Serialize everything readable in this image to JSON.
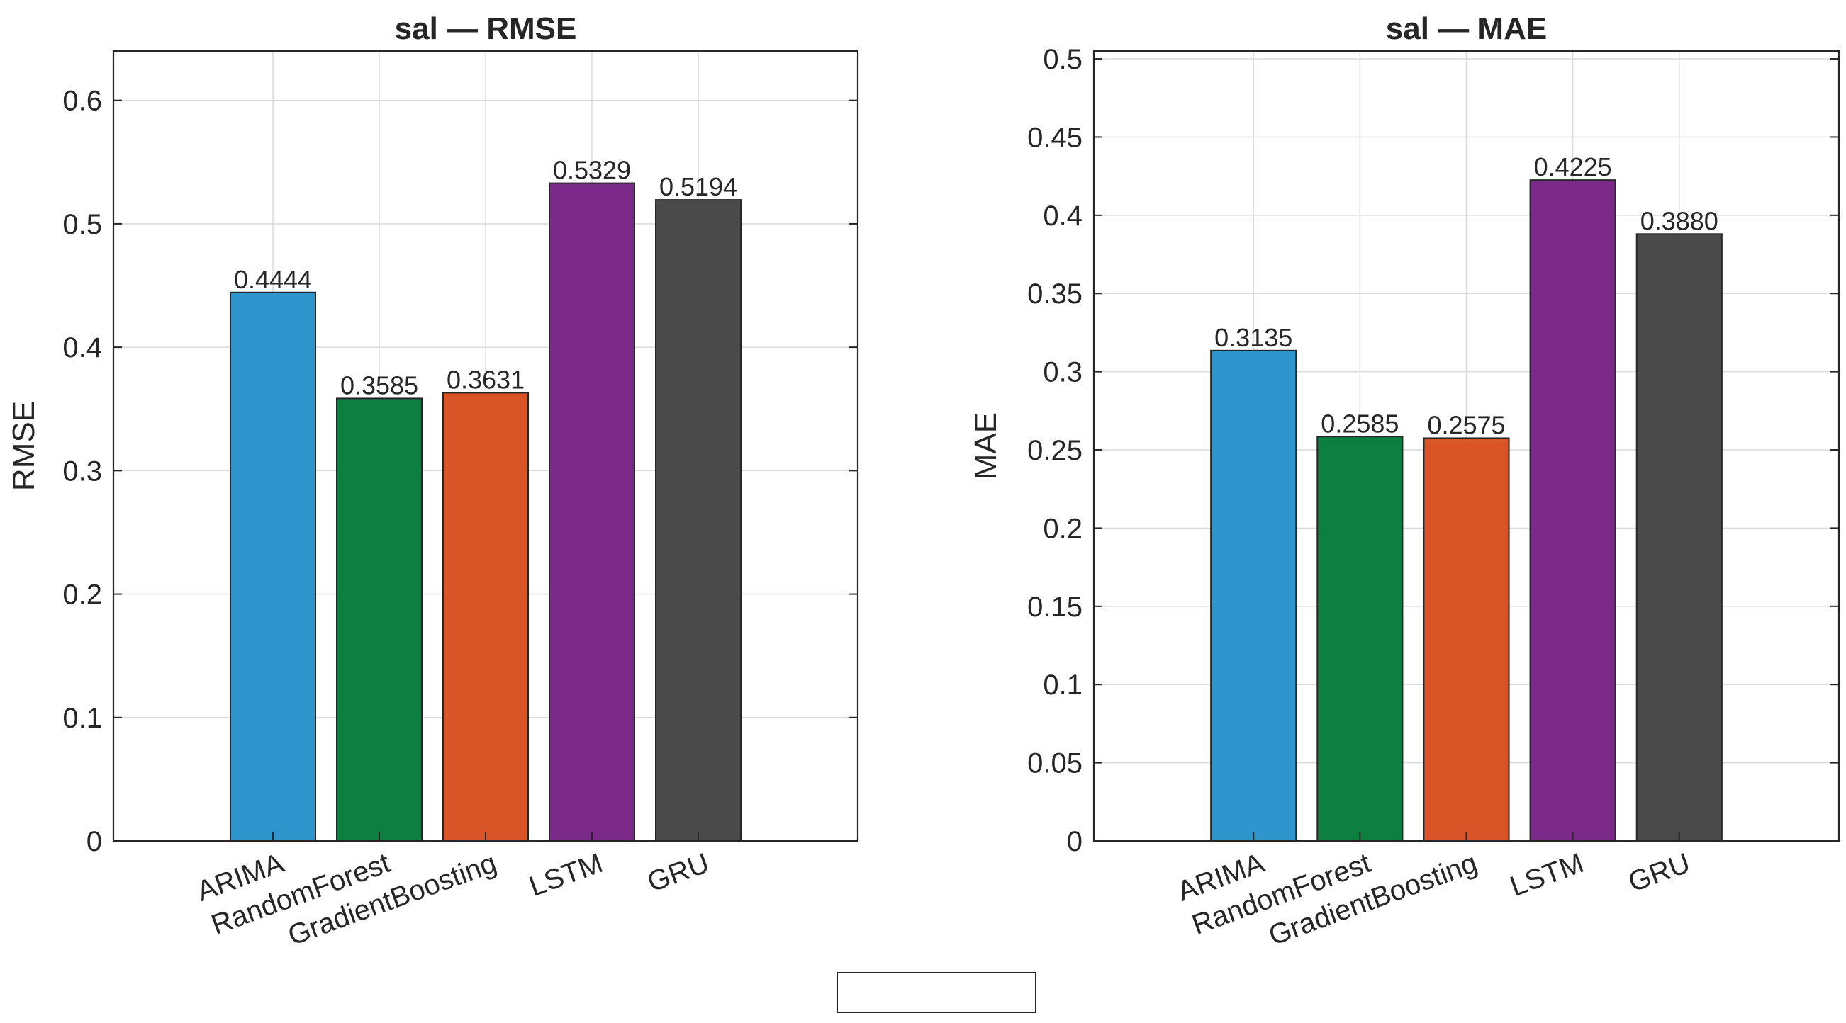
{
  "chart_data": [
    {
      "type": "bar",
      "title": "sal — RMSE",
      "xlabel": "",
      "ylabel": "RMSE",
      "categories": [
        "ARIMA",
        "RandomForest",
        "GradientBoosting",
        "LSTM",
        "GRU"
      ],
      "values": [
        0.4444,
        0.3585,
        0.3631,
        0.5329,
        0.5194
      ],
      "value_labels": [
        "0.4444",
        "0.3585",
        "0.3631",
        "0.5329",
        "0.5194"
      ],
      "colors": [
        "#2e96cc",
        "#0c7f41",
        "#d95426",
        "#7b2a8a",
        "#4a4a4a"
      ],
      "ylim": [
        0,
        0.64
      ],
      "yticks": [
        0,
        0.1,
        0.2,
        0.3,
        0.4,
        0.5,
        0.6
      ],
      "ytick_labels": [
        "0",
        "0.1",
        "0.2",
        "0.3",
        "0.4",
        "0.5",
        "0.6"
      ],
      "grid": true
    },
    {
      "type": "bar",
      "title": "sal — MAE",
      "xlabel": "",
      "ylabel": "MAE",
      "categories": [
        "ARIMA",
        "RandomForest",
        "GradientBoosting",
        "LSTM",
        "GRU"
      ],
      "values": [
        0.3135,
        0.2585,
        0.2575,
        0.4225,
        0.388
      ],
      "value_labels": [
        "0.3135",
        "0.2585",
        "0.2575",
        "0.4225",
        "0.3880"
      ],
      "colors": [
        "#2e96cc",
        "#0c7f41",
        "#d95426",
        "#7b2a8a",
        "#4a4a4a"
      ],
      "ylim": [
        0,
        0.505
      ],
      "yticks": [
        0,
        0.05,
        0.1,
        0.15,
        0.2,
        0.25,
        0.3,
        0.35,
        0.4,
        0.45,
        0.5
      ],
      "ytick_labels": [
        "0",
        "0.05",
        "0.1",
        "0.15",
        "0.2",
        "0.25",
        "0.3",
        "0.35",
        "0.4",
        "0.45",
        "0.5"
      ],
      "grid": true
    }
  ]
}
